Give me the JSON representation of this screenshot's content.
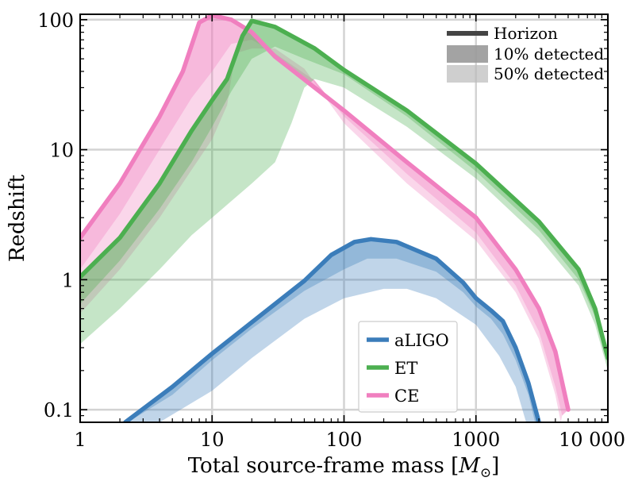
{
  "chart_data": {
    "type": "area",
    "xlabel": "Total source-frame mass [",
    "xlabel_symbol": "M",
    "xlabel_sub": "⊙",
    "xlabel_close": "]",
    "ylabel": "Redshift",
    "x_scale": "log",
    "y_scale": "log",
    "xlim": [
      1,
      10000
    ],
    "ylim": [
      0.08,
      110
    ],
    "grid": true,
    "x_ticks": [
      {
        "value": 1,
        "label": "1"
      },
      {
        "value": 10,
        "label": "10"
      },
      {
        "value": 100,
        "label": "100"
      },
      {
        "value": 1000,
        "label": "1000"
      },
      {
        "value": 10000,
        "label": "10 000"
      }
    ],
    "y_ticks": [
      {
        "value": 0.1,
        "label": "0.1"
      },
      {
        "value": 1,
        "label": "1"
      },
      {
        "value": 10,
        "label": "10"
      },
      {
        "value": 100,
        "label": "100"
      }
    ],
    "legend_placement": "bottom-center",
    "style_legend_placement": "top-right",
    "style_legend": [
      {
        "label": "Horizon"
      },
      {
        "label": "10% detected"
      },
      {
        "label": "50% detected"
      }
    ],
    "series": [
      {
        "name": "aLIGO",
        "color": "#3b7dba",
        "horizon": [
          [
            2.2,
            0.08
          ],
          [
            5,
            0.15
          ],
          [
            10,
            0.27
          ],
          [
            20,
            0.47
          ],
          [
            50,
            0.98
          ],
          [
            80,
            1.55
          ],
          [
            120,
            1.95
          ],
          [
            160,
            2.05
          ],
          [
            250,
            1.95
          ],
          [
            500,
            1.45
          ],
          [
            800,
            0.95
          ],
          [
            1000,
            0.72
          ],
          [
            1300,
            0.58
          ],
          [
            1600,
            0.48
          ],
          [
            2000,
            0.3
          ],
          [
            2500,
            0.16
          ],
          [
            3000,
            0.08
          ]
        ],
        "detected_10": [
          [
            2.3,
            0.08
          ],
          [
            5,
            0.13
          ],
          [
            10,
            0.24
          ],
          [
            20,
            0.42
          ],
          [
            50,
            0.82
          ],
          [
            100,
            1.2
          ],
          [
            150,
            1.45
          ],
          [
            250,
            1.45
          ],
          [
            500,
            1.15
          ],
          [
            800,
            0.8
          ],
          [
            1000,
            0.62
          ],
          [
            1300,
            0.5
          ],
          [
            1600,
            0.38
          ],
          [
            2000,
            0.24
          ],
          [
            2500,
            0.13
          ],
          [
            2800,
            0.08
          ]
        ],
        "detected_50": [
          [
            4,
            0.08
          ],
          [
            10,
            0.14
          ],
          [
            20,
            0.25
          ],
          [
            50,
            0.5
          ],
          [
            100,
            0.72
          ],
          [
            200,
            0.85
          ],
          [
            300,
            0.85
          ],
          [
            500,
            0.72
          ],
          [
            1000,
            0.45
          ],
          [
            1500,
            0.26
          ],
          [
            2000,
            0.15
          ],
          [
            2400,
            0.08
          ]
        ]
      },
      {
        "name": "ET",
        "color": "#4caf50",
        "horizon": [
          [
            1,
            1.05
          ],
          [
            2,
            2.1
          ],
          [
            4,
            5.5
          ],
          [
            7,
            14
          ],
          [
            10,
            24
          ],
          [
            13,
            35
          ],
          [
            17,
            75
          ],
          [
            20,
            98
          ],
          [
            30,
            88
          ],
          [
            60,
            60
          ],
          [
            100,
            41
          ],
          [
            300,
            20
          ],
          [
            1000,
            7.8
          ],
          [
            3000,
            2.8
          ],
          [
            6000,
            1.2
          ],
          [
            8000,
            0.6
          ],
          [
            10000,
            0.25
          ]
        ],
        "detected_10": [
          [
            1,
            0.65
          ],
          [
            2,
            1.4
          ],
          [
            4,
            3.5
          ],
          [
            7,
            8
          ],
          [
            10,
            15
          ],
          [
            14,
            28
          ],
          [
            20,
            50
          ],
          [
            30,
            62
          ],
          [
            50,
            50
          ],
          [
            100,
            38
          ],
          [
            300,
            18
          ],
          [
            1000,
            6.8
          ],
          [
            3000,
            2.4
          ],
          [
            6000,
            1.0
          ],
          [
            8000,
            0.52
          ],
          [
            10000,
            0.22
          ]
        ],
        "detected_50": [
          [
            1,
            0.32
          ],
          [
            2,
            0.6
          ],
          [
            4,
            1.2
          ],
          [
            7,
            2.2
          ],
          [
            10,
            3
          ],
          [
            20,
            5.5
          ],
          [
            30,
            8
          ],
          [
            40,
            16
          ],
          [
            50,
            30
          ],
          [
            60,
            35
          ],
          [
            100,
            30
          ],
          [
            300,
            15
          ],
          [
            1000,
            6
          ],
          [
            3000,
            2.1
          ],
          [
            6000,
            0.9
          ],
          [
            8000,
            0.45
          ],
          [
            10000,
            0.2
          ]
        ]
      },
      {
        "name": "CE",
        "color": "#f07fbf",
        "horizon": [
          [
            1,
            2.1
          ],
          [
            2,
            5.5
          ],
          [
            4,
            18
          ],
          [
            6,
            40
          ],
          [
            8,
            95
          ],
          [
            10,
            108
          ],
          [
            14,
            100
          ],
          [
            20,
            80
          ],
          [
            30,
            52
          ],
          [
            60,
            30
          ],
          [
            100,
            20
          ],
          [
            300,
            8
          ],
          [
            1000,
            3
          ],
          [
            2000,
            1.2
          ],
          [
            3000,
            0.6
          ],
          [
            4000,
            0.28
          ],
          [
            5000,
            0.1
          ]
        ],
        "detected_10": [
          [
            1,
            1.2
          ],
          [
            2,
            3.2
          ],
          [
            4,
            10
          ],
          [
            7,
            25
          ],
          [
            10,
            40
          ],
          [
            14,
            65
          ],
          [
            20,
            70
          ],
          [
            30,
            55
          ],
          [
            60,
            34
          ],
          [
            100,
            18
          ],
          [
            300,
            6.5
          ],
          [
            1000,
            2.3
          ],
          [
            2000,
            0.9
          ],
          [
            3000,
            0.4
          ],
          [
            4000,
            0.15
          ],
          [
            4500,
            0.09
          ]
        ],
        "detected_50": [
          [
            1,
            0.55
          ],
          [
            2,
            1.2
          ],
          [
            4,
            3
          ],
          [
            7,
            7
          ],
          [
            10,
            12
          ],
          [
            13,
            22
          ],
          [
            15,
            55
          ],
          [
            20,
            60
          ],
          [
            30,
            60
          ],
          [
            50,
            42
          ],
          [
            100,
            16
          ],
          [
            300,
            5.5
          ],
          [
            1000,
            2
          ],
          [
            2000,
            0.8
          ],
          [
            3000,
            0.35
          ],
          [
            4000,
            0.13
          ],
          [
            4400,
            0.08
          ]
        ]
      }
    ]
  }
}
